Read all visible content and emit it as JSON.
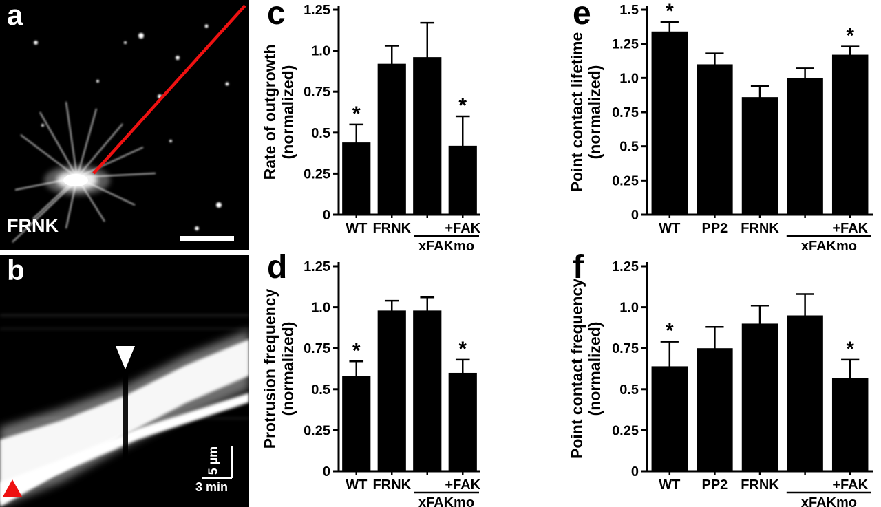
{
  "panels": {
    "a": {
      "label": "a",
      "caption": "FRNK"
    },
    "b": {
      "label": "b",
      "scale_vertical": "5 µm",
      "scale_horizontal": "3 min"
    }
  },
  "colors": {
    "bar_fill": "#000000",
    "axis": "#000000",
    "image_background": "#000000",
    "annotation_red": "#ee1111",
    "figure_background": "#ffffff"
  },
  "chart_data": [
    {
      "panel_label": "c",
      "type": "bar",
      "ylabel_lines": [
        "Rate of outgrowth",
        "(normalized)"
      ],
      "ylim": [
        0,
        1.25
      ],
      "yticks": [
        0,
        0.25,
        0.5,
        0.75,
        1.0,
        1.25
      ],
      "ytick_labels": [
        "0",
        "0.25",
        "0.5",
        "0.75",
        "1.0",
        "1.25"
      ],
      "categories": [
        "WT",
        "FRNK",
        "",
        "+FAK"
      ],
      "values": [
        0.44,
        0.92,
        0.96,
        0.42
      ],
      "errors": [
        0.11,
        0.11,
        0.21,
        0.18
      ],
      "significance": [
        "*",
        "",
        "",
        "*"
      ],
      "group_bracket": {
        "label": "xFAKmo",
        "start": 2,
        "end": 3
      },
      "grid": false,
      "legend": false
    },
    {
      "panel_label": "d",
      "type": "bar",
      "ylabel_lines": [
        "Protrusion frequency",
        "(normalized)"
      ],
      "ylim": [
        0,
        1.25
      ],
      "yticks": [
        0,
        0.25,
        0.5,
        0.75,
        1.0,
        1.25
      ],
      "ytick_labels": [
        "0",
        "0.25",
        "0.5",
        "0.75",
        "1.0",
        "1.25"
      ],
      "categories": [
        "WT",
        "FRNK",
        "",
        "+FAK"
      ],
      "values": [
        0.58,
        0.98,
        0.98,
        0.6
      ],
      "errors": [
        0.09,
        0.06,
        0.08,
        0.08
      ],
      "significance": [
        "*",
        "",
        "",
        "*"
      ],
      "group_bracket": {
        "label": "xFAKmo",
        "start": 2,
        "end": 3
      },
      "grid": false,
      "legend": false
    },
    {
      "panel_label": "e",
      "type": "bar",
      "ylabel_lines": [
        "Point contact lifetime",
        "(normalized)"
      ],
      "ylim": [
        0,
        1.5
      ],
      "yticks": [
        0,
        0.25,
        0.5,
        0.75,
        1.0,
        1.25,
        1.5
      ],
      "ytick_labels": [
        "0",
        "0.25",
        "0.5",
        "0.75",
        "1.0",
        "1.25",
        "1.5"
      ],
      "categories": [
        "WT",
        "PP2",
        "FRNK",
        "",
        "+FAK"
      ],
      "values": [
        1.34,
        1.1,
        0.86,
        1.0,
        1.17
      ],
      "errors": [
        0.07,
        0.08,
        0.08,
        0.07,
        0.06
      ],
      "significance": [
        "*",
        "",
        "",
        "",
        "*"
      ],
      "group_bracket": {
        "label": "xFAKmo",
        "start": 3,
        "end": 4
      },
      "grid": false,
      "legend": false
    },
    {
      "panel_label": "f",
      "type": "bar",
      "ylabel_lines": [
        "Point contact frequency",
        "(normalized)"
      ],
      "ylim": [
        0,
        1.25
      ],
      "yticks": [
        0,
        0.25,
        0.5,
        0.75,
        1.0,
        1.25
      ],
      "ytick_labels": [
        "0",
        "0.25",
        "0.5",
        "0.75",
        "1.0",
        "1.25"
      ],
      "categories": [
        "WT",
        "PP2",
        "FRNK",
        "",
        "+FAK"
      ],
      "values": [
        0.64,
        0.75,
        0.9,
        0.95,
        0.57
      ],
      "errors": [
        0.15,
        0.13,
        0.11,
        0.13,
        0.11
      ],
      "significance": [
        "*",
        "",
        "",
        "",
        "*"
      ],
      "group_bracket": {
        "label": "xFAKmo",
        "start": 3,
        "end": 4
      },
      "grid": false,
      "legend": false
    }
  ]
}
